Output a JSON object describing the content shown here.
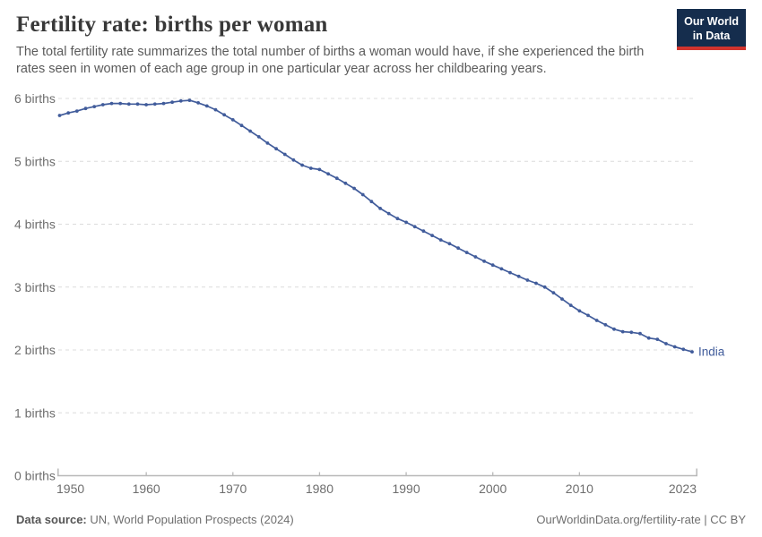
{
  "header": {
    "title": "Fertility rate: births per woman",
    "subtitle": "The total fertility rate summarizes the total number of births a woman would have, if she experienced the birth rates seen in women of each age group in one particular year across her childbearing years.",
    "logo": {
      "line1": "Our World",
      "line2": "in Data"
    }
  },
  "footer": {
    "source_label": "Data source:",
    "source_text": " UN, World Population Prospects (2024)",
    "link_text": "OurWorldinData.org/fertility-rate | CC BY"
  },
  "colors": {
    "line": "#415C9B",
    "grid": "#dcdcdc",
    "axis": "#b8b8b8",
    "tick_label": "#6e6e6e",
    "logo_bg": "#152d4d",
    "logo_red": "#d1342e"
  },
  "chart_data": {
    "type": "line",
    "title": "Fertility rate: births per woman",
    "entity": "India",
    "end_label": "India",
    "grid": "horizontal-dashed",
    "legend": "end-of-line-label",
    "xlim": [
      1950,
      2023
    ],
    "ylim": [
      0,
      6
    ],
    "x_ticks": [
      {
        "value": 1950,
        "label": "1950"
      },
      {
        "value": 1960,
        "label": "1960"
      },
      {
        "value": 1970,
        "label": "1970"
      },
      {
        "value": 1980,
        "label": "1980"
      },
      {
        "value": 1990,
        "label": "1990"
      },
      {
        "value": 2000,
        "label": "2000"
      },
      {
        "value": 2010,
        "label": "2010"
      },
      {
        "value": 2023,
        "label": "2023"
      }
    ],
    "y_ticks": [
      {
        "value": 0,
        "label": "0 births"
      },
      {
        "value": 1,
        "label": "1 births"
      },
      {
        "value": 2,
        "label": "2 births"
      },
      {
        "value": 3,
        "label": "3 births"
      },
      {
        "value": 4,
        "label": "4 births"
      },
      {
        "value": 5,
        "label": "5 births"
      },
      {
        "value": 6,
        "label": "6 births"
      }
    ],
    "x": [
      1950,
      1951,
      1952,
      1953,
      1954,
      1955,
      1956,
      1957,
      1958,
      1959,
      1960,
      1961,
      1962,
      1963,
      1964,
      1965,
      1966,
      1967,
      1968,
      1969,
      1970,
      1971,
      1972,
      1973,
      1974,
      1975,
      1976,
      1977,
      1978,
      1979,
      1980,
      1981,
      1982,
      1983,
      1984,
      1985,
      1986,
      1987,
      1988,
      1989,
      1990,
      1991,
      1992,
      1993,
      1994,
      1995,
      1996,
      1997,
      1998,
      1999,
      2000,
      2001,
      2002,
      2003,
      2004,
      2005,
      2006,
      2007,
      2008,
      2009,
      2010,
      2011,
      2012,
      2013,
      2014,
      2015,
      2016,
      2017,
      2018,
      2019,
      2020,
      2021,
      2022,
      2023
    ],
    "series": [
      {
        "name": "India",
        "color": "#415C9B",
        "values": [
          5.73,
          5.77,
          5.8,
          5.84,
          5.87,
          5.9,
          5.92,
          5.92,
          5.91,
          5.91,
          5.9,
          5.91,
          5.92,
          5.94,
          5.96,
          5.97,
          5.93,
          5.88,
          5.82,
          5.74,
          5.66,
          5.57,
          5.48,
          5.39,
          5.29,
          5.2,
          5.11,
          5.02,
          4.94,
          4.89,
          4.87,
          4.8,
          4.73,
          4.65,
          4.57,
          4.47,
          4.36,
          4.25,
          4.17,
          4.09,
          4.03,
          3.96,
          3.89,
          3.82,
          3.75,
          3.69,
          3.62,
          3.55,
          3.48,
          3.41,
          3.35,
          3.29,
          3.23,
          3.17,
          3.11,
          3.06,
          3.0,
          2.91,
          2.81,
          2.71,
          2.62,
          2.55,
          2.47,
          2.4,
          2.33,
          2.29,
          2.28,
          2.26,
          2.19,
          2.17,
          2.1,
          2.05,
          2.01,
          1.97
        ]
      }
    ]
  }
}
